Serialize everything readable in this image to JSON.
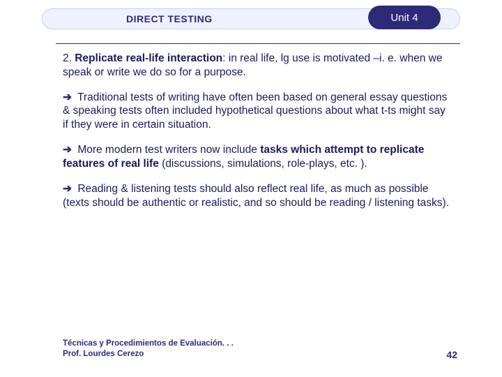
{
  "header": {
    "title": "DIRECT TESTING",
    "unit_label": "Unit 4"
  },
  "colors": {
    "band_bg": "#eef2fd",
    "band_border": "#c4cff0",
    "pill_bg": "#2d2a78",
    "pill_text": "#ffffff",
    "body_text": "#1a1a5c",
    "divider": "#2d2a78"
  },
  "content": {
    "point_number": "2. ",
    "point_title": "Replicate real-life interaction",
    "point_rest": ": in real life, lg use is motivated –i. e. when we speak or write we do so for a purpose.",
    "bullets": [
      {
        "pre": "Traditional tests of writing have often been based on general essay questions & speaking tests often included hypothetical questions about what t-ts might say if they were in certain situation.",
        "bold": "",
        "post": ""
      },
      {
        "pre": "More modern test writers now include ",
        "bold": "tasks which attempt to replicate features of real life",
        "post": " (discussions, simulations, role-plays, etc. )."
      },
      {
        "pre": "Reading & listening tests should also reflect real life, as much as possible (texts should be authentic or realistic, and so should be reading / listening tasks).",
        "bold": "",
        "post": ""
      }
    ]
  },
  "footer": {
    "line1": "Técnicas y Procedimientos de Evaluación. . .",
    "line2": "Prof. Lourdes Cerezo",
    "page": "42"
  }
}
